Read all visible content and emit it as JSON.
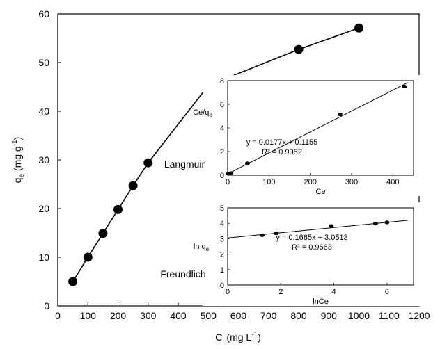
{
  "chart_data": [
    {
      "type": "line",
      "role": "main",
      "x": [
        50,
        100,
        150,
        200,
        250,
        300,
        500,
        800,
        1000
      ],
      "y": [
        5.0,
        10.0,
        14.9,
        19.8,
        24.7,
        29.4,
        45.3,
        52.7,
        57.1
      ],
      "xlabel_base": "C",
      "xlabel_sub": "i",
      "xlabel_unit": " (mg L",
      "xlabel_sup": "-1",
      "xlabel_end": ")",
      "ylabel_base": "q",
      "ylabel_sub": "e",
      "ylabel_unit": " (mg g",
      "ylabel_sup": "-1",
      "ylabel_end": ")",
      "xlim": [
        0,
        1200
      ],
      "ylim": [
        0,
        60
      ],
      "xticks": [
        0,
        100,
        200,
        300,
        400,
        500,
        600,
        700,
        800,
        900,
        1000,
        1100,
        1200
      ],
      "yticks": [
        0,
        10,
        20,
        30,
        40,
        50,
        60
      ],
      "marker": "filled-circle",
      "grid": false
    },
    {
      "type": "scatter",
      "role": "inset-langmuir",
      "model_label": "Langmuir",
      "x": [
        2,
        8,
        48,
        272,
        428
      ],
      "y": [
        0.12,
        0.18,
        1.0,
        5.15,
        7.5
      ],
      "fit": {
        "slope": 0.0177,
        "intercept": 0.1155
      },
      "equation": "y = 0.0177x + 0.1155",
      "r2": "R² = 0.9982",
      "xlabel": "Ce",
      "ylabel_base": "Ce/q",
      "ylabel_sub": "e",
      "xlim": [
        0,
        450
      ],
      "ylim": [
        0,
        8
      ],
      "xticks": [
        0,
        100,
        200,
        300,
        400
      ],
      "yticks": [
        0,
        2,
        4,
        6,
        8
      ]
    },
    {
      "type": "scatter",
      "role": "inset-freundlich",
      "model_label": "Freundlich",
      "x": [
        1.3,
        1.83,
        3.9,
        5.57,
        6.0
      ],
      "y": [
        3.23,
        3.35,
        3.83,
        3.98,
        4.06
      ],
      "fit": {
        "slope": 0.1685,
        "intercept": 3.0513
      },
      "equation": "y = 0.1685x + 3.0513",
      "r2": "R² = 0.9663",
      "xlabel": "lnCe",
      "ylabel_base": "ln q",
      "ylabel_sub": "e",
      "xlim": [
        0,
        7
      ],
      "ylim": [
        0,
        5
      ],
      "xticks": [
        0,
        2,
        4,
        6
      ],
      "yticks": [
        0,
        1,
        2,
        3,
        4,
        5
      ]
    }
  ]
}
